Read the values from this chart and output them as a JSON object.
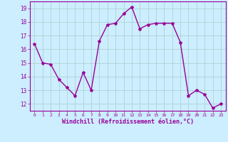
{
  "x": [
    0,
    1,
    2,
    3,
    4,
    5,
    6,
    7,
    8,
    9,
    10,
    11,
    12,
    13,
    14,
    15,
    16,
    17,
    18,
    19,
    20,
    21,
    22,
    23
  ],
  "y": [
    16.4,
    15.0,
    14.9,
    13.8,
    13.2,
    12.6,
    14.3,
    13.0,
    16.6,
    17.8,
    17.9,
    18.6,
    19.1,
    17.5,
    17.8,
    17.9,
    17.9,
    17.9,
    16.5,
    12.6,
    13.0,
    12.7,
    11.7,
    12.0
  ],
  "line_color": "#990099",
  "marker": "*",
  "markersize": 3,
  "linewidth": 1.0,
  "xlabel": "Windchill (Refroidissement éolien,°C)",
  "xlabel_fontsize": 6,
  "ylim": [
    11.5,
    19.5
  ],
  "yticks": [
    12,
    13,
    14,
    15,
    16,
    17,
    18,
    19
  ],
  "xticks": [
    0,
    1,
    2,
    3,
    4,
    5,
    6,
    7,
    8,
    9,
    10,
    11,
    12,
    13,
    14,
    15,
    16,
    17,
    18,
    19,
    20,
    21,
    22,
    23
  ],
  "xtick_fontsize": 4.5,
  "ytick_fontsize": 5.5,
  "bg_color": "#cceeff",
  "grid_color": "#aacccc",
  "tick_color": "#990099",
  "xlabel_color": "#990099",
  "spine_color": "#990099"
}
